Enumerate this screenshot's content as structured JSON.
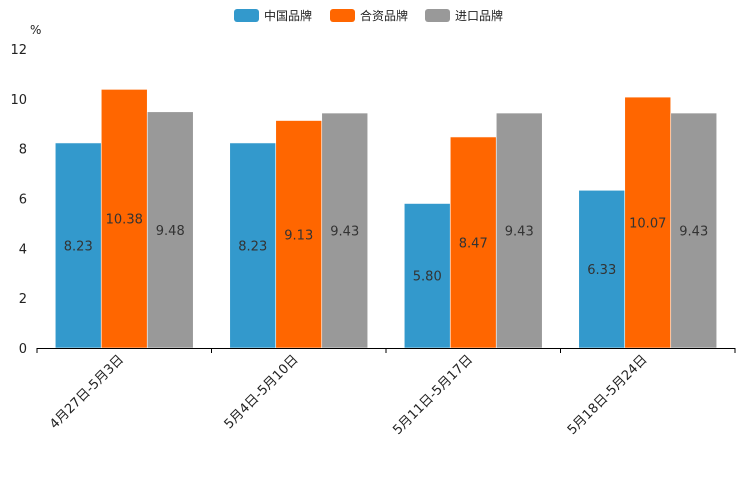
{
  "chart_data": {
    "type": "bar",
    "title": "",
    "xlabel": "",
    "ylabel": "%",
    "ylim": [
      0,
      12
    ],
    "yticks": [
      0,
      2,
      4,
      6,
      8,
      10,
      12
    ],
    "grid": false,
    "legend_position": "top-center",
    "categories": [
      "4月27日-5月3日",
      "5月4日-5月10日",
      "5月11日-5月17日",
      "5月18日-5月24日"
    ],
    "series": [
      {
        "name": "中国品牌",
        "color": "#3399CC",
        "values": [
          8.23,
          8.23,
          5.8,
          6.33
        ],
        "labels": [
          "8.23",
          "8.23",
          "5.80",
          "6.33"
        ]
      },
      {
        "name": "合资品牌",
        "color": "#FF6600",
        "values": [
          10.38,
          9.13,
          8.47,
          10.07
        ],
        "labels": [
          "10.38",
          "9.13",
          "8.47",
          "10.07"
        ]
      },
      {
        "name": "进口品牌",
        "color": "#999999",
        "values": [
          9.48,
          9.43,
          9.43,
          9.43
        ],
        "labels": [
          "9.48",
          "9.43",
          "9.43",
          "9.43"
        ]
      }
    ]
  }
}
